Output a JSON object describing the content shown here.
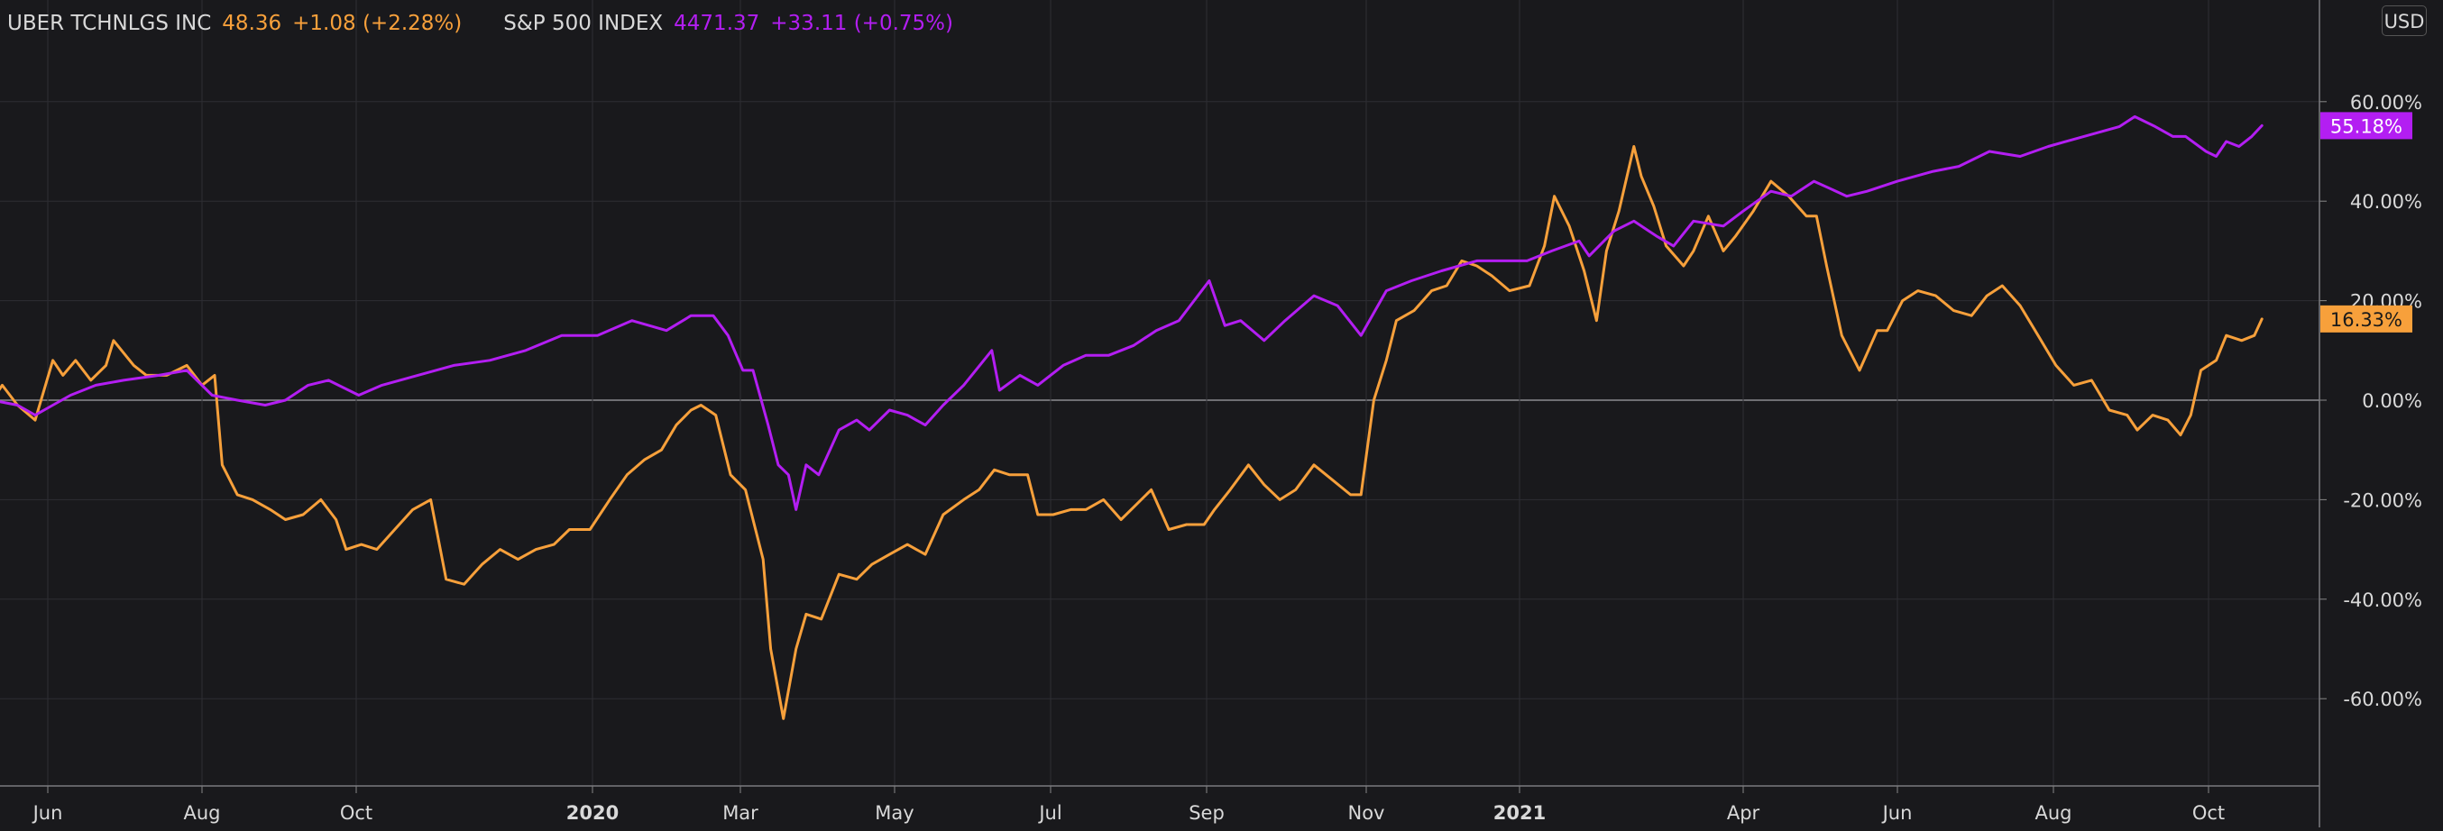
{
  "legend": {
    "uber_name": "UBER TCHNLGS INC",
    "uber_price": "48.36",
    "uber_change": "+1.08 (+2.28%)",
    "spx_name": "S&P 500 INDEX",
    "spx_price": "4471.37",
    "spx_change": "+33.11 (+0.75%)"
  },
  "currency_button": "USD",
  "colors": {
    "background": "#19191c",
    "uber": "#f7a03b",
    "spx": "#b31ef2",
    "grid": "#2e2e33",
    "text": "#d9d9d9"
  },
  "chart_data": {
    "type": "line",
    "ylim": [
      -78,
      78
    ],
    "y_ticks": [
      {
        "v": 60,
        "label": "60.00%"
      },
      {
        "v": 40,
        "label": "40.00%"
      },
      {
        "v": 20,
        "label": "20.00%"
      },
      {
        "v": 0,
        "label": "0.00%"
      },
      {
        "v": -20,
        "label": "-20.00%"
      },
      {
        "v": -40,
        "label": "-40.00%"
      },
      {
        "v": -60,
        "label": "-60.00%"
      }
    ],
    "x_ticks": [
      {
        "d": "2019-06-01",
        "label": "Jun",
        "bold": false
      },
      {
        "d": "2019-08-01",
        "label": "Aug",
        "bold": false
      },
      {
        "d": "2019-10-01",
        "label": "Oct",
        "bold": false
      },
      {
        "d": "2020-01-01",
        "label": "2020",
        "bold": true
      },
      {
        "d": "2020-03-01",
        "label": "Mar",
        "bold": false
      },
      {
        "d": "2020-05-01",
        "label": "May",
        "bold": false
      },
      {
        "d": "2020-07-01",
        "label": "Jul",
        "bold": false
      },
      {
        "d": "2020-09-01",
        "label": "Sep",
        "bold": false
      },
      {
        "d": "2020-11-01",
        "label": "Nov",
        "bold": false
      },
      {
        "d": "2021-01-01",
        "label": "2021",
        "bold": true
      },
      {
        "d": "2021-04-01",
        "label": "Apr",
        "bold": false
      },
      {
        "d": "2021-06-01",
        "label": "Jun",
        "bold": false
      },
      {
        "d": "2021-08-01",
        "label": "Aug",
        "bold": false
      },
      {
        "d": "2021-10-01",
        "label": "Oct",
        "bold": false
      }
    ],
    "last_value_labels": {
      "spx": "55.18%",
      "uber": "16.33%"
    },
    "series": [
      {
        "name": "UBER TCHNLGS INC",
        "color": "#f7a03b",
        "points": [
          [
            "2019-05-10",
            0
          ],
          [
            "2019-05-14",
            3
          ],
          [
            "2019-05-20",
            -1
          ],
          [
            "2019-05-27",
            -4
          ],
          [
            "2019-06-03",
            8
          ],
          [
            "2019-06-07",
            5
          ],
          [
            "2019-06-12",
            8
          ],
          [
            "2019-06-18",
            4
          ],
          [
            "2019-06-24",
            7
          ],
          [
            "2019-06-27",
            12
          ],
          [
            "2019-07-05",
            7
          ],
          [
            "2019-07-10",
            5
          ],
          [
            "2019-07-18",
            5
          ],
          [
            "2019-07-26",
            7
          ],
          [
            "2019-08-01",
            3
          ],
          [
            "2019-08-06",
            5
          ],
          [
            "2019-08-09",
            -13
          ],
          [
            "2019-08-15",
            -19
          ],
          [
            "2019-08-21",
            -20
          ],
          [
            "2019-08-28",
            -22
          ],
          [
            "2019-09-03",
            -24
          ],
          [
            "2019-09-10",
            -23
          ],
          [
            "2019-09-17",
            -20
          ],
          [
            "2019-09-23",
            -24
          ],
          [
            "2019-09-27",
            -30
          ],
          [
            "2019-10-03",
            -29
          ],
          [
            "2019-10-09",
            -30
          ],
          [
            "2019-10-16",
            -26
          ],
          [
            "2019-10-23",
            -22
          ],
          [
            "2019-10-30",
            -20
          ],
          [
            "2019-11-05",
            -36
          ],
          [
            "2019-11-12",
            -37
          ],
          [
            "2019-11-19",
            -33
          ],
          [
            "2019-11-26",
            -30
          ],
          [
            "2019-12-03",
            -32
          ],
          [
            "2019-12-10",
            -30
          ],
          [
            "2019-12-17",
            -29
          ],
          [
            "2019-12-23",
            -26
          ],
          [
            "2019-12-31",
            -26
          ],
          [
            "2020-01-08",
            -20
          ],
          [
            "2020-01-15",
            -15
          ],
          [
            "2020-01-22",
            -12
          ],
          [
            "2020-01-29",
            -10
          ],
          [
            "2020-02-04",
            -5
          ],
          [
            "2020-02-10",
            -2
          ],
          [
            "2020-02-14",
            -1
          ],
          [
            "2020-02-20",
            -3
          ],
          [
            "2020-02-26",
            -15
          ],
          [
            "2020-03-03",
            -18
          ],
          [
            "2020-03-10",
            -32
          ],
          [
            "2020-03-13",
            -50
          ],
          [
            "2020-03-18",
            -64
          ],
          [
            "2020-03-23",
            -50
          ],
          [
            "2020-03-27",
            -43
          ],
          [
            "2020-04-02",
            -44
          ],
          [
            "2020-04-09",
            -35
          ],
          [
            "2020-04-16",
            -36
          ],
          [
            "2020-04-22",
            -33
          ],
          [
            "2020-04-29",
            -31
          ],
          [
            "2020-05-06",
            -29
          ],
          [
            "2020-05-13",
            -31
          ],
          [
            "2020-05-20",
            -23
          ],
          [
            "2020-05-28",
            -20
          ],
          [
            "2020-06-03",
            -18
          ],
          [
            "2020-06-09",
            -14
          ],
          [
            "2020-06-15",
            -15
          ],
          [
            "2020-06-22",
            -15
          ],
          [
            "2020-06-26",
            -23
          ],
          [
            "2020-07-02",
            -23
          ],
          [
            "2020-07-09",
            -22
          ],
          [
            "2020-07-15",
            -22
          ],
          [
            "2020-07-22",
            -20
          ],
          [
            "2020-07-29",
            -24
          ],
          [
            "2020-08-04",
            -21
          ],
          [
            "2020-08-10",
            -18
          ],
          [
            "2020-08-17",
            -26
          ],
          [
            "2020-08-24",
            -25
          ],
          [
            "2020-08-31",
            -25
          ],
          [
            "2020-09-04",
            -22
          ],
          [
            "2020-09-10",
            -18
          ],
          [
            "2020-09-17",
            -13
          ],
          [
            "2020-09-23",
            -17
          ],
          [
            "2020-09-29",
            -20
          ],
          [
            "2020-10-05",
            -18
          ],
          [
            "2020-10-12",
            -13
          ],
          [
            "2020-10-19",
            -16
          ],
          [
            "2020-10-26",
            -19
          ],
          [
            "2020-10-30",
            -19
          ],
          [
            "2020-11-04",
            0
          ],
          [
            "2020-11-09",
            8
          ],
          [
            "2020-11-13",
            16
          ],
          [
            "2020-11-20",
            18
          ],
          [
            "2020-11-27",
            22
          ],
          [
            "2020-12-03",
            23
          ],
          [
            "2020-12-09",
            28
          ],
          [
            "2020-12-15",
            27
          ],
          [
            "2020-12-21",
            25
          ],
          [
            "2020-12-28",
            22
          ],
          [
            "2021-01-05",
            23
          ],
          [
            "2021-01-11",
            31
          ],
          [
            "2021-01-15",
            41
          ],
          [
            "2021-01-21",
            35
          ],
          [
            "2021-01-27",
            26
          ],
          [
            "2021-02-01",
            16
          ],
          [
            "2021-02-05",
            30
          ],
          [
            "2021-02-10",
            38
          ],
          [
            "2021-02-16",
            51
          ],
          [
            "2021-02-19",
            45
          ],
          [
            "2021-02-24",
            39
          ],
          [
            "2021-03-01",
            31
          ],
          [
            "2021-03-08",
            27
          ],
          [
            "2021-03-12",
            30
          ],
          [
            "2021-03-18",
            37
          ],
          [
            "2021-03-24",
            30
          ],
          [
            "2021-03-29",
            33
          ],
          [
            "2021-04-05",
            38
          ],
          [
            "2021-04-12",
            44
          ],
          [
            "2021-04-19",
            41
          ],
          [
            "2021-04-26",
            37
          ],
          [
            "2021-04-30",
            37
          ],
          [
            "2021-05-04",
            27
          ],
          [
            "2021-05-10",
            13
          ],
          [
            "2021-05-17",
            6
          ],
          [
            "2021-05-24",
            14
          ],
          [
            "2021-05-28",
            14
          ],
          [
            "2021-06-03",
            20
          ],
          [
            "2021-06-09",
            22
          ],
          [
            "2021-06-16",
            21
          ],
          [
            "2021-06-23",
            18
          ],
          [
            "2021-06-30",
            17
          ],
          [
            "2021-07-06",
            21
          ],
          [
            "2021-07-12",
            23
          ],
          [
            "2021-07-19",
            19
          ],
          [
            "2021-07-26",
            13
          ],
          [
            "2021-08-02",
            7
          ],
          [
            "2021-08-09",
            3
          ],
          [
            "2021-08-16",
            4
          ],
          [
            "2021-08-23",
            -2
          ],
          [
            "2021-08-30",
            -3
          ],
          [
            "2021-09-03",
            -6
          ],
          [
            "2021-09-09",
            -3
          ],
          [
            "2021-09-15",
            -4
          ],
          [
            "2021-09-20",
            -7
          ],
          [
            "2021-09-24",
            -3
          ],
          [
            "2021-09-28",
            6
          ],
          [
            "2021-10-04",
            8
          ],
          [
            "2021-10-08",
            13
          ],
          [
            "2021-10-14",
            12
          ],
          [
            "2021-10-19",
            13
          ],
          [
            "2021-10-22",
            16.33
          ]
        ]
      },
      {
        "name": "S&P 500 INDEX",
        "color": "#b31ef2",
        "points": [
          [
            "2019-05-10",
            0
          ],
          [
            "2019-05-20",
            -1
          ],
          [
            "2019-05-27",
            -3
          ],
          [
            "2019-06-03",
            -1
          ],
          [
            "2019-06-10",
            1
          ],
          [
            "2019-06-20",
            3
          ],
          [
            "2019-07-01",
            4
          ],
          [
            "2019-07-15",
            5
          ],
          [
            "2019-07-26",
            6
          ],
          [
            "2019-08-05",
            1
          ],
          [
            "2019-08-15",
            0
          ],
          [
            "2019-08-26",
            -1
          ],
          [
            "2019-09-03",
            0
          ],
          [
            "2019-09-12",
            3
          ],
          [
            "2019-09-20",
            4
          ],
          [
            "2019-10-02",
            1
          ],
          [
            "2019-10-11",
            3
          ],
          [
            "2019-10-25",
            5
          ],
          [
            "2019-11-08",
            7
          ],
          [
            "2019-11-22",
            8
          ],
          [
            "2019-12-06",
            10
          ],
          [
            "2019-12-20",
            13
          ],
          [
            "2020-01-03",
            13
          ],
          [
            "2020-01-17",
            16
          ],
          [
            "2020-01-31",
            14
          ],
          [
            "2020-02-10",
            17
          ],
          [
            "2020-02-19",
            17
          ],
          [
            "2020-02-25",
            13
          ],
          [
            "2020-03-02",
            6
          ],
          [
            "2020-03-06",
            6
          ],
          [
            "2020-03-12",
            -5
          ],
          [
            "2020-03-16",
            -13
          ],
          [
            "2020-03-20",
            -15
          ],
          [
            "2020-03-23",
            -22
          ],
          [
            "2020-03-27",
            -13
          ],
          [
            "2020-04-01",
            -15
          ],
          [
            "2020-04-09",
            -6
          ],
          [
            "2020-04-16",
            -4
          ],
          [
            "2020-04-21",
            -6
          ],
          [
            "2020-04-29",
            -2
          ],
          [
            "2020-05-06",
            -3
          ],
          [
            "2020-05-13",
            -5
          ],
          [
            "2020-05-20",
            -1
          ],
          [
            "2020-05-28",
            3
          ],
          [
            "2020-06-08",
            10
          ],
          [
            "2020-06-11",
            2
          ],
          [
            "2020-06-19",
            5
          ],
          [
            "2020-06-26",
            3
          ],
          [
            "2020-07-06",
            7
          ],
          [
            "2020-07-15",
            9
          ],
          [
            "2020-07-24",
            9
          ],
          [
            "2020-08-03",
            11
          ],
          [
            "2020-08-12",
            14
          ],
          [
            "2020-08-21",
            16
          ],
          [
            "2020-09-02",
            24
          ],
          [
            "2020-09-08",
            15
          ],
          [
            "2020-09-14",
            16
          ],
          [
            "2020-09-23",
            12
          ],
          [
            "2020-10-01",
            16
          ],
          [
            "2020-10-12",
            21
          ],
          [
            "2020-10-21",
            19
          ],
          [
            "2020-10-30",
            13
          ],
          [
            "2020-11-09",
            22
          ],
          [
            "2020-11-19",
            24
          ],
          [
            "2020-12-01",
            26
          ],
          [
            "2020-12-15",
            28
          ],
          [
            "2021-01-04",
            28
          ],
          [
            "2021-01-14",
            30
          ],
          [
            "2021-01-25",
            32
          ],
          [
            "2021-01-29",
            29
          ],
          [
            "2021-02-08",
            34
          ],
          [
            "2021-02-16",
            36
          ],
          [
            "2021-02-25",
            33
          ],
          [
            "2021-03-04",
            31
          ],
          [
            "2021-03-12",
            36
          ],
          [
            "2021-03-24",
            35
          ],
          [
            "2021-04-01",
            38
          ],
          [
            "2021-04-12",
            42
          ],
          [
            "2021-04-20",
            41
          ],
          [
            "2021-04-29",
            44
          ],
          [
            "2021-05-12",
            41
          ],
          [
            "2021-05-20",
            42
          ],
          [
            "2021-06-01",
            44
          ],
          [
            "2021-06-15",
            46
          ],
          [
            "2021-06-25",
            47
          ],
          [
            "2021-07-07",
            50
          ],
          [
            "2021-07-19",
            49
          ],
          [
            "2021-07-30",
            51
          ],
          [
            "2021-08-13",
            53
          ],
          [
            "2021-08-27",
            55
          ],
          [
            "2021-09-02",
            57
          ],
          [
            "2021-09-10",
            55
          ],
          [
            "2021-09-17",
            53
          ],
          [
            "2021-09-22",
            53
          ],
          [
            "2021-09-30",
            50
          ],
          [
            "2021-10-04",
            49
          ],
          [
            "2021-10-08",
            52
          ],
          [
            "2021-10-13",
            51
          ],
          [
            "2021-10-18",
            53
          ],
          [
            "2021-10-22",
            55.18
          ]
        ]
      }
    ]
  }
}
